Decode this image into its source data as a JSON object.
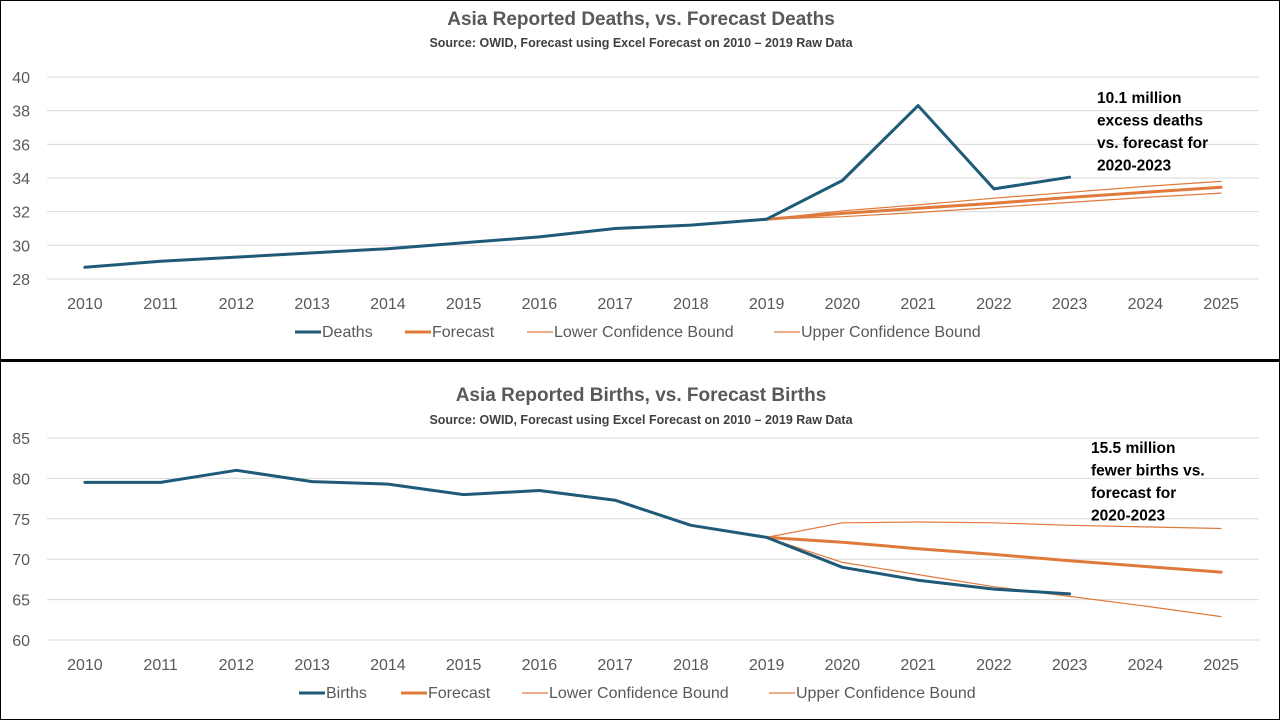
{
  "colors": {
    "actual": "#1f5a78",
    "forecast": "#e07a3c",
    "bound": "#e07a3c",
    "grid": "#d9d9d9"
  },
  "chart_data": [
    {
      "type": "line",
      "title": "Asia Reported Deaths, vs. Forecast Deaths",
      "subtitle": "Source: OWID, Forecast using Excel Forecast on 2010 – 2019 Raw Data",
      "xlabel": "",
      "ylabel": "",
      "x": [
        "2010",
        "2011",
        "2012",
        "2013",
        "2014",
        "2015",
        "2016",
        "2017",
        "2018",
        "2019",
        "2020",
        "2021",
        "2022",
        "2023",
        "2024",
        "2025"
      ],
      "ylim": [
        28,
        40
      ],
      "yticks": [
        "28",
        "30",
        "32",
        "34",
        "36",
        "38",
        "40"
      ],
      "grid": true,
      "legend": "bottom",
      "annotation": [
        "10.1 million",
        "excess deaths",
        "vs. forecast for",
        "2020-2023"
      ],
      "series": [
        {
          "name": "Deaths",
          "role": "actual",
          "values": [
            28.7,
            29.05,
            29.3,
            29.55,
            29.8,
            30.15,
            30.5,
            31.0,
            31.2,
            31.55,
            33.85,
            38.3,
            33.35,
            34.05,
            null,
            null
          ]
        },
        {
          "name": "Forecast",
          "role": "forecast",
          "values": [
            null,
            null,
            null,
            null,
            null,
            null,
            null,
            null,
            null,
            31.55,
            31.9,
            32.2,
            32.5,
            32.85,
            33.15,
            33.45
          ]
        },
        {
          "name": "Lower Confidence Bound",
          "role": "bound",
          "values": [
            null,
            null,
            null,
            null,
            null,
            null,
            null,
            null,
            null,
            31.55,
            31.7,
            31.95,
            32.25,
            32.55,
            32.85,
            33.1
          ]
        },
        {
          "name": "Upper Confidence Bound",
          "role": "bound",
          "values": [
            null,
            null,
            null,
            null,
            null,
            null,
            null,
            null,
            null,
            31.55,
            32.05,
            32.4,
            32.8,
            33.15,
            33.5,
            33.8
          ]
        }
      ]
    },
    {
      "type": "line",
      "title": "Asia Reported Births, vs. Forecast Births",
      "subtitle": "Source: OWID, Forecast using Excel Forecast on 2010 – 2019 Raw Data",
      "xlabel": "",
      "ylabel": "",
      "x": [
        "2010",
        "2011",
        "2012",
        "2013",
        "2014",
        "2015",
        "2016",
        "2017",
        "2018",
        "2019",
        "2020",
        "2021",
        "2022",
        "2023",
        "2024",
        "2025"
      ],
      "ylim": [
        60,
        85
      ],
      "yticks": [
        "60",
        "65",
        "70",
        "75",
        "80",
        "85"
      ],
      "grid": true,
      "legend": "bottom",
      "annotation": [
        "15.5 million",
        "fewer births vs.",
        "forecast for",
        "2020-2023"
      ],
      "series": [
        {
          "name": "Births",
          "role": "actual",
          "values": [
            79.5,
            79.5,
            81.0,
            79.6,
            79.3,
            78.0,
            78.5,
            77.3,
            74.2,
            72.7,
            69.0,
            67.4,
            66.3,
            65.7,
            null,
            null
          ]
        },
        {
          "name": "Forecast",
          "role": "forecast",
          "values": [
            null,
            null,
            null,
            null,
            null,
            null,
            null,
            null,
            null,
            72.7,
            72.1,
            71.3,
            70.6,
            69.8,
            69.1,
            68.4
          ]
        },
        {
          "name": "Lower Confidence Bound",
          "role": "bound",
          "values": [
            null,
            null,
            null,
            null,
            null,
            null,
            null,
            null,
            null,
            72.7,
            69.6,
            68.1,
            66.6,
            65.4,
            64.2,
            62.9
          ]
        },
        {
          "name": "Upper Confidence Bound",
          "role": "bound",
          "values": [
            null,
            null,
            null,
            null,
            null,
            null,
            null,
            null,
            null,
            72.7,
            74.5,
            74.6,
            74.5,
            74.2,
            74.0,
            73.8
          ]
        }
      ]
    }
  ]
}
